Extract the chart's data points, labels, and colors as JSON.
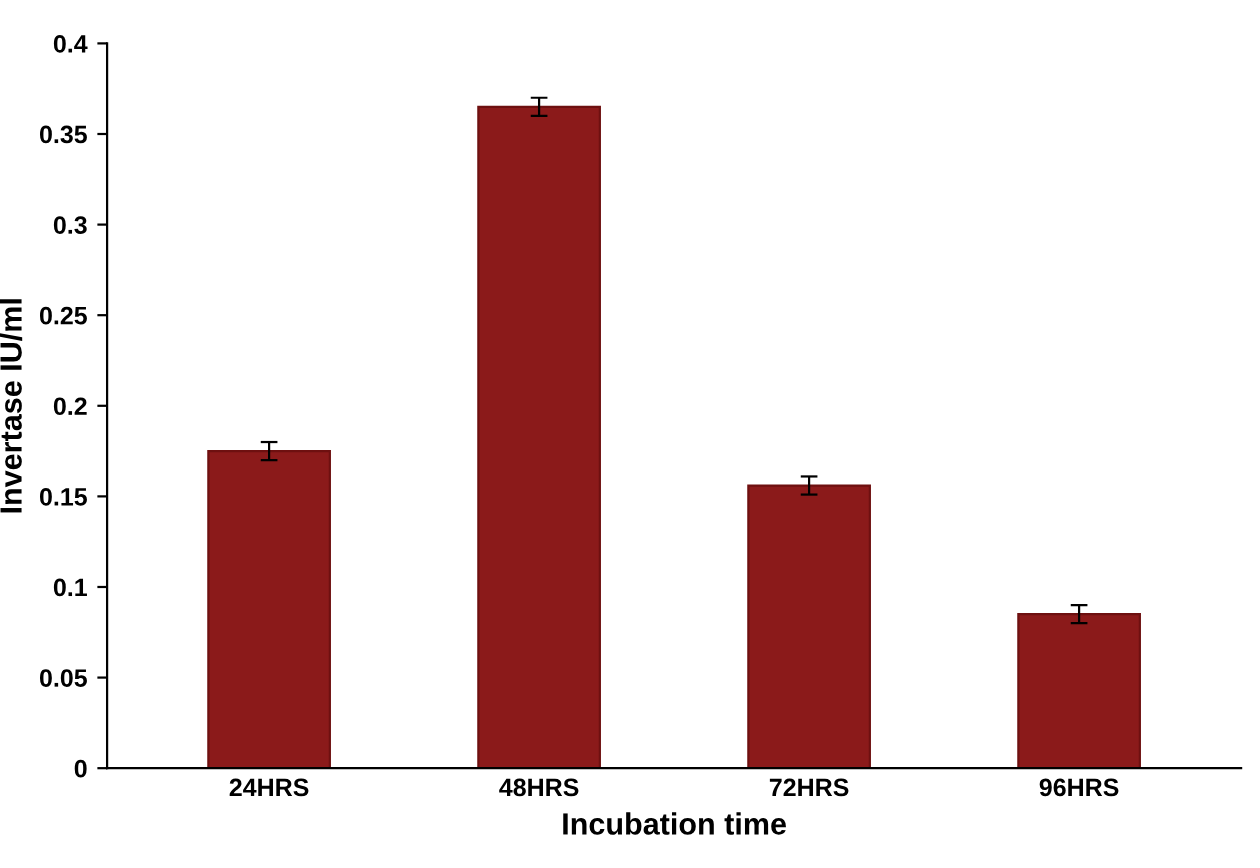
{
  "chart_data": {
    "type": "bar",
    "xlabel": "Incubation time",
    "ylabel": "Invertase IU/ml",
    "categories": [
      "24HRS",
      "48HRS",
      "72HRS",
      "96HRS"
    ],
    "values": [
      0.175,
      0.365,
      0.156,
      0.085
    ],
    "errors": [
      0.005,
      0.005,
      0.005,
      0.005
    ],
    "color": "#8b1a1a",
    "ylim": [
      0,
      0.4
    ],
    "yticks": [
      0,
      0.05,
      0.1,
      0.15,
      0.2,
      0.25,
      0.3,
      0.35,
      0.4
    ],
    "grid": false
  }
}
